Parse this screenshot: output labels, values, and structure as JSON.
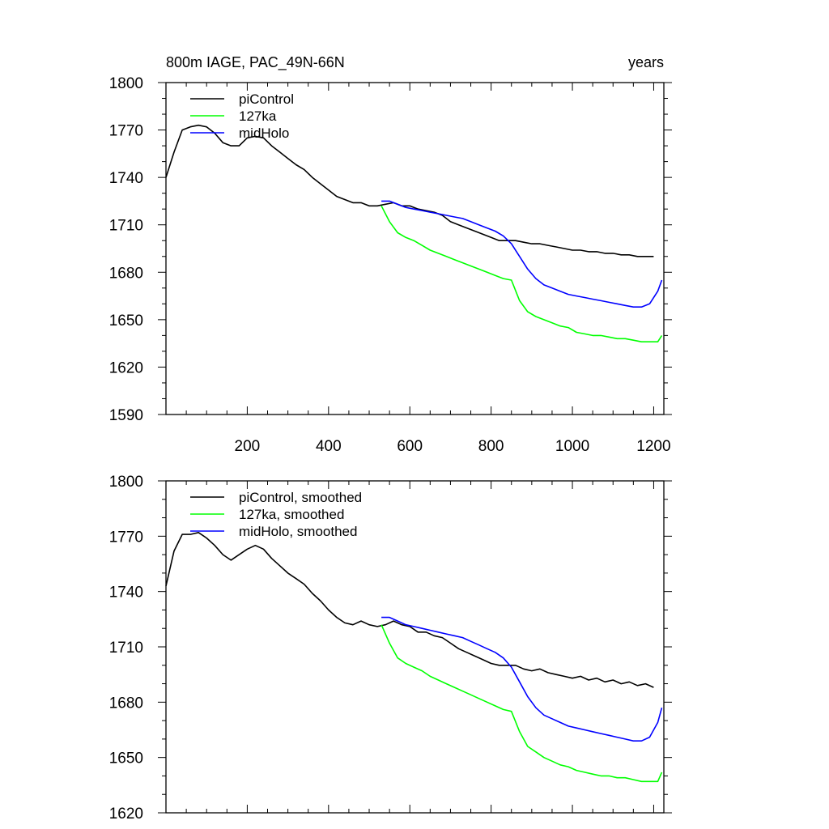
{
  "chart_data": [
    {
      "type": "line",
      "title_left": "800m IAGE, PAC_49N-66N",
      "title_right": "years",
      "xlim": [
        0,
        1225
      ],
      "ylim": [
        1590,
        1800
      ],
      "xticks": [
        200,
        400,
        600,
        800,
        1000,
        1200
      ],
      "yticks": [
        1590,
        1620,
        1650,
        1680,
        1710,
        1740,
        1770,
        1800
      ],
      "show_x_tick_labels": true,
      "legend_position": "top-left",
      "series": [
        {
          "name": "piControl",
          "color": "#000000",
          "x": [
            0,
            20,
            40,
            60,
            80,
            100,
            120,
            140,
            160,
            180,
            200,
            220,
            240,
            260,
            280,
            300,
            320,
            340,
            360,
            380,
            400,
            420,
            440,
            460,
            480,
            500,
            520,
            540,
            560,
            580,
            600,
            620,
            640,
            660,
            680,
            700,
            720,
            740,
            760,
            780,
            800,
            820,
            840,
            860,
            880,
            900,
            920,
            940,
            960,
            980,
            1000,
            1020,
            1040,
            1060,
            1080,
            1100,
            1120,
            1140,
            1160,
            1180,
            1200
          ],
          "y": [
            1740,
            1756,
            1770,
            1772,
            1773,
            1772,
            1768,
            1762,
            1760,
            1760,
            1765,
            1766,
            1765,
            1760,
            1756,
            1752,
            1748,
            1745,
            1740,
            1736,
            1732,
            1728,
            1726,
            1724,
            1724,
            1722,
            1722,
            1723,
            1724,
            1722,
            1722,
            1720,
            1719,
            1718,
            1716,
            1712,
            1710,
            1708,
            1706,
            1704,
            1702,
            1700,
            1700,
            1700,
            1699,
            1698,
            1698,
            1697,
            1696,
            1695,
            1694,
            1694,
            1693,
            1693,
            1692,
            1692,
            1691,
            1691,
            1690,
            1690,
            1690
          ]
        },
        {
          "name": "127ka",
          "color": "#00ff00",
          "x": [
            530,
            550,
            570,
            590,
            610,
            630,
            650,
            670,
            690,
            710,
            730,
            750,
            770,
            790,
            810,
            830,
            850,
            870,
            890,
            910,
            930,
            950,
            970,
            990,
            1010,
            1030,
            1050,
            1070,
            1090,
            1110,
            1130,
            1150,
            1170,
            1190,
            1210,
            1220
          ],
          "y": [
            1722,
            1712,
            1705,
            1702,
            1700,
            1697,
            1694,
            1692,
            1690,
            1688,
            1686,
            1684,
            1682,
            1680,
            1678,
            1676,
            1675,
            1662,
            1655,
            1652,
            1650,
            1648,
            1646,
            1645,
            1642,
            1641,
            1640,
            1640,
            1639,
            1638,
            1638,
            1637,
            1636,
            1636,
            1636,
            1640
          ]
        },
        {
          "name": "midHolo",
          "color": "#0000ff",
          "x": [
            530,
            550,
            570,
            590,
            610,
            630,
            650,
            670,
            690,
            710,
            730,
            750,
            770,
            790,
            810,
            830,
            850,
            870,
            890,
            910,
            930,
            950,
            970,
            990,
            1010,
            1030,
            1050,
            1070,
            1090,
            1110,
            1130,
            1150,
            1170,
            1190,
            1210,
            1220
          ],
          "y": [
            1725,
            1725,
            1723,
            1721,
            1720,
            1719,
            1718,
            1717,
            1716,
            1715,
            1714,
            1712,
            1710,
            1708,
            1706,
            1703,
            1698,
            1690,
            1682,
            1676,
            1672,
            1670,
            1668,
            1666,
            1665,
            1664,
            1663,
            1662,
            1661,
            1660,
            1659,
            1658,
            1658,
            1660,
            1668,
            1675
          ]
        }
      ]
    },
    {
      "type": "line",
      "xlim": [
        0,
        1225
      ],
      "ylim": [
        1620,
        1800
      ],
      "xticks": [
        200,
        400,
        600,
        800,
        1000,
        1200
      ],
      "yticks": [
        1620,
        1650,
        1680,
        1710,
        1740,
        1770,
        1800
      ],
      "show_x_tick_labels": false,
      "legend_position": "top-left",
      "series": [
        {
          "name": "piControl, smoothed",
          "color": "#000000",
          "x": [
            0,
            20,
            40,
            60,
            80,
            100,
            120,
            140,
            160,
            180,
            200,
            220,
            240,
            260,
            280,
            300,
            320,
            340,
            360,
            380,
            400,
            420,
            440,
            460,
            480,
            500,
            520,
            540,
            560,
            580,
            600,
            620,
            640,
            660,
            680,
            700,
            720,
            740,
            760,
            780,
            800,
            820,
            840,
            860,
            880,
            900,
            920,
            940,
            960,
            980,
            1000,
            1020,
            1040,
            1060,
            1080,
            1100,
            1120,
            1140,
            1160,
            1180,
            1200
          ],
          "y": [
            1743,
            1762,
            1771,
            1771,
            1772,
            1769,
            1765,
            1760,
            1757,
            1760,
            1763,
            1765,
            1763,
            1758,
            1754,
            1750,
            1747,
            1744,
            1739,
            1735,
            1730,
            1726,
            1723,
            1722,
            1724,
            1722,
            1721,
            1722,
            1724,
            1722,
            1721,
            1718,
            1718,
            1716,
            1715,
            1712,
            1709,
            1707,
            1705,
            1703,
            1701,
            1700,
            1700,
            1700,
            1698,
            1697,
            1698,
            1696,
            1695,
            1694,
            1693,
            1694,
            1692,
            1693,
            1691,
            1692,
            1690,
            1691,
            1689,
            1690,
            1688
          ]
        },
        {
          "name": "127ka, smoothed",
          "color": "#00ff00",
          "x": [
            530,
            550,
            570,
            590,
            610,
            630,
            650,
            670,
            690,
            710,
            730,
            750,
            770,
            790,
            810,
            830,
            850,
            870,
            890,
            910,
            930,
            950,
            970,
            990,
            1010,
            1030,
            1050,
            1070,
            1090,
            1110,
            1130,
            1150,
            1170,
            1190,
            1210,
            1220
          ],
          "y": [
            1722,
            1712,
            1704,
            1701,
            1699,
            1697,
            1694,
            1692,
            1690,
            1688,
            1686,
            1684,
            1682,
            1680,
            1678,
            1676,
            1675,
            1664,
            1656,
            1653,
            1650,
            1648,
            1646,
            1645,
            1643,
            1642,
            1641,
            1640,
            1640,
            1639,
            1639,
            1638,
            1637,
            1637,
            1637,
            1642
          ]
        },
        {
          "name": "midHolo, smoothed",
          "color": "#0000ff",
          "x": [
            530,
            550,
            570,
            590,
            610,
            630,
            650,
            670,
            690,
            710,
            730,
            750,
            770,
            790,
            810,
            830,
            850,
            870,
            890,
            910,
            930,
            950,
            970,
            990,
            1010,
            1030,
            1050,
            1070,
            1090,
            1110,
            1130,
            1150,
            1170,
            1190,
            1210,
            1220
          ],
          "y": [
            1726,
            1726,
            1724,
            1722,
            1721,
            1720,
            1719,
            1718,
            1717,
            1716,
            1715,
            1713,
            1711,
            1709,
            1707,
            1704,
            1699,
            1691,
            1683,
            1677,
            1673,
            1671,
            1669,
            1667,
            1666,
            1665,
            1664,
            1663,
            1662,
            1661,
            1660,
            1659,
            1659,
            1661,
            1669,
            1677
          ]
        }
      ]
    }
  ]
}
